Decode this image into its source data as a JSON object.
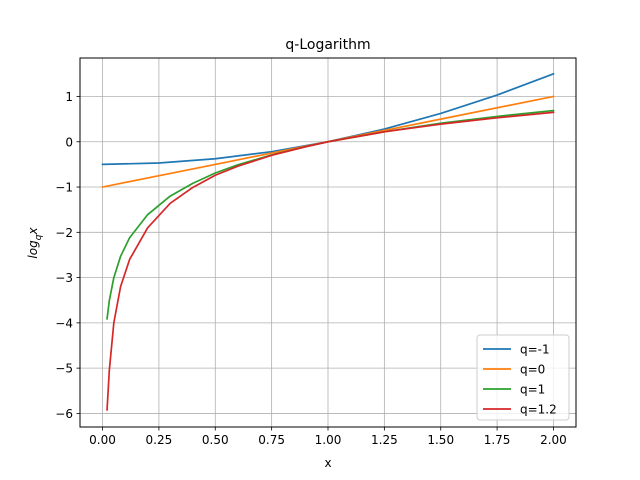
{
  "chart_data": {
    "type": "line",
    "title": "q-Logarithm",
    "xlabel": "x",
    "ylabel_base": "log",
    "ylabel_sub": "q",
    "ylabel_tail": "x",
    "xlim": [
      -0.1,
      2.1
    ],
    "ylim": [
      -6.3,
      1.85
    ],
    "grid": true,
    "legend_position": "lower-right",
    "x_ticks": [
      0.0,
      0.25,
      0.5,
      0.75,
      1.0,
      1.25,
      1.5,
      1.75,
      2.0
    ],
    "x_tick_labels": [
      "0.00",
      "0.25",
      "0.50",
      "0.75",
      "1.00",
      "1.25",
      "1.50",
      "1.75",
      "2.00"
    ],
    "y_ticks": [
      -6,
      -5,
      -4,
      -3,
      -2,
      -1,
      0,
      1
    ],
    "y_tick_labels": [
      "−6",
      "−5",
      "−4",
      "−3",
      "−2",
      "−1",
      "0",
      "1"
    ],
    "series": [
      {
        "name": "q=-1",
        "color": "#1f77b4",
        "x": [
          0.0,
          0.25,
          0.5,
          0.75,
          1.0,
          1.25,
          1.5,
          1.75,
          2.0
        ],
        "y": [
          -0.5,
          -0.469,
          -0.375,
          -0.219,
          0.0,
          0.281,
          0.625,
          1.031,
          1.5
        ]
      },
      {
        "name": "q=0",
        "color": "#ff7f0e",
        "x": [
          0.0,
          0.5,
          1.0,
          1.5,
          2.0
        ],
        "y": [
          -1.0,
          -0.5,
          0.0,
          0.5,
          1.0
        ]
      },
      {
        "name": "q=1",
        "color": "#2ca02c",
        "x": [
          0.02,
          0.03,
          0.05,
          0.08,
          0.12,
          0.2,
          0.3,
          0.4,
          0.5,
          0.6,
          0.75,
          0.9,
          1.0,
          1.25,
          1.5,
          1.75,
          2.0
        ],
        "y": [
          -3.91,
          -3.51,
          -3.0,
          -2.53,
          -2.12,
          -1.61,
          -1.2,
          -0.92,
          -0.69,
          -0.51,
          -0.29,
          -0.11,
          0.0,
          0.22,
          0.41,
          0.56,
          0.69
        ]
      },
      {
        "name": "q=1.2",
        "color": "#d62728",
        "x": [
          0.02,
          0.03,
          0.05,
          0.08,
          0.12,
          0.2,
          0.3,
          0.4,
          0.5,
          0.6,
          0.75,
          0.9,
          1.0,
          1.25,
          1.5,
          1.75,
          2.0
        ],
        "y": [
          -5.92,
          -5.05,
          -4.0,
          -3.2,
          -2.6,
          -1.9,
          -1.36,
          -1.01,
          -0.74,
          -0.54,
          -0.3,
          -0.11,
          0.0,
          0.22,
          0.39,
          0.53,
          0.65
        ]
      }
    ]
  }
}
